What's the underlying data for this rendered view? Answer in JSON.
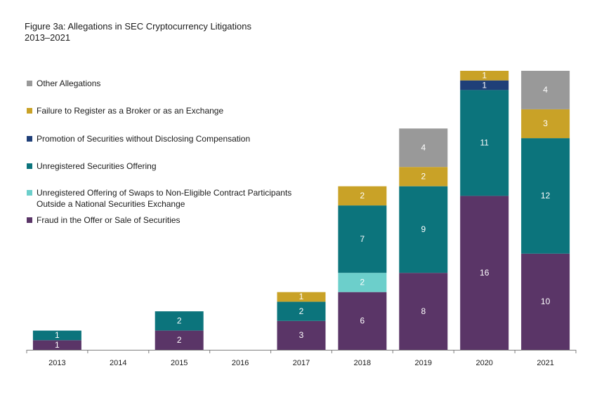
{
  "chart_data": {
    "type": "bar",
    "stacked": true,
    "title": "Figure 3a: Allegations in SEC Cryptocurrency Litigations",
    "subtitle": "2013–2021",
    "categories": [
      "2013",
      "2014",
      "2015",
      "2016",
      "2017",
      "2018",
      "2019",
      "2020",
      "2021"
    ],
    "ylim": [
      0,
      29
    ],
    "grid": false,
    "legend_position": "top-left",
    "series": [
      {
        "name": "Fraud in the Offer or Sale of Securities",
        "color": "#5a3567",
        "values": [
          1,
          0,
          2,
          0,
          3,
          6,
          8,
          16,
          10
        ]
      },
      {
        "name": "Unregistered Offering of Swaps to Non-Eligible Contract Participants Outside a National Securities Exchange",
        "color": "#6ccfcb",
        "values": [
          0,
          0,
          0,
          0,
          0,
          2,
          0,
          0,
          0
        ]
      },
      {
        "name": "Unregistered Securities Offering",
        "color": "#0c747c",
        "values": [
          1,
          0,
          2,
          0,
          2,
          7,
          9,
          11,
          12
        ]
      },
      {
        "name": "Promotion of Securities without Disclosing Compensation",
        "color": "#1f3f78",
        "values": [
          0,
          0,
          0,
          0,
          0,
          0,
          0,
          1,
          0
        ]
      },
      {
        "name": "Failure to Register as a Broker or as an Exchange",
        "color": "#c9a227",
        "values": [
          0,
          0,
          0,
          0,
          1,
          2,
          2,
          1,
          3
        ]
      },
      {
        "name": "Other Allegations",
        "color": "#999999",
        "values": [
          0,
          0,
          0,
          0,
          0,
          0,
          4,
          0,
          4
        ]
      }
    ],
    "legend_order": [
      "Other Allegations",
      "Failure to Register as a Broker or as an Exchange",
      "Promotion of Securities without Disclosing Compensation",
      "Unregistered Securities Offering",
      "Unregistered Offering of Swaps to Non-Eligible Contract Participants Outside a National Securities Exchange",
      "Fraud in the Offer or Sale of Securities"
    ],
    "legend_lines": [
      [
        "Other Allegations"
      ],
      [
        "Failure to Register as a Broker or as an Exchange"
      ],
      [
        "Promotion of Securities without Disclosing Compensation"
      ],
      [
        "Unregistered Securities Offering"
      ],
      [
        "Unregistered Offering of Swaps to Non-Eligible Contract Participants",
        "Outside a National Securities Exchange"
      ],
      [
        "Fraud in the Offer or Sale of Securities"
      ]
    ]
  }
}
